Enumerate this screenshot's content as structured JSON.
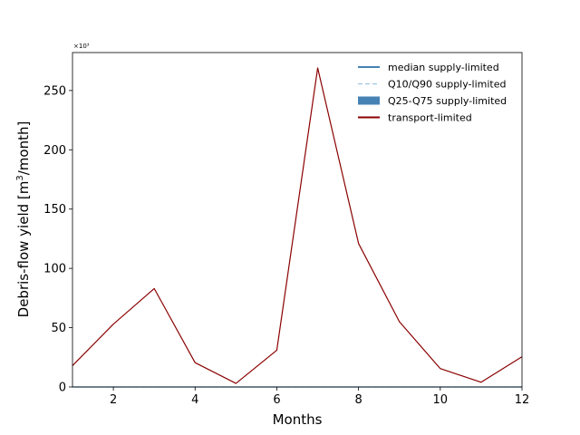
{
  "chart_data": {
    "type": "line",
    "xlabel": "Months",
    "ylabel_main": "Debris-flow yield [m",
    "ylabel_sup": "3",
    "ylabel_tail": "/month]",
    "y_scale_note": "×10³",
    "xlim": [
      1,
      12
    ],
    "ylim": [
      0,
      282
    ],
    "x_ticks": [
      2,
      4,
      6,
      8,
      10,
      12
    ],
    "y_ticks": [
      0,
      50,
      100,
      150,
      200,
      250
    ],
    "grid": false,
    "legend_position": "top-right",
    "colors": {
      "median": "#4682b4",
      "q10_q90": "#9ec5e0",
      "q25_q75": "#4682b4",
      "transport": "#8b0000"
    },
    "series": [
      {
        "name": "median supply-limited",
        "style": "solid",
        "x": [
          1,
          2,
          3,
          4,
          5,
          6,
          7,
          8,
          9,
          10,
          11,
          12
        ],
        "y": [
          0,
          0,
          0,
          0,
          0,
          0,
          0,
          0,
          0,
          0,
          0,
          0
        ]
      },
      {
        "name": "Q10/Q90 supply-limited",
        "style": "dashed",
        "x": [
          1,
          2,
          3,
          4,
          5,
          6,
          7,
          8,
          9,
          10,
          11,
          12
        ],
        "y": [
          0,
          0,
          0,
          0,
          0,
          0,
          0,
          0,
          0,
          0,
          0,
          0
        ]
      },
      {
        "name": "Q25-Q75 supply-limited",
        "style": "band",
        "x": [
          1,
          2,
          3,
          4,
          5,
          6,
          7,
          8,
          9,
          10,
          11,
          12
        ],
        "y": [
          0,
          0,
          0,
          0,
          0,
          0,
          0,
          0,
          0,
          0,
          0,
          0
        ]
      },
      {
        "name": "transport-limited",
        "style": "solid",
        "x": [
          1,
          2,
          3,
          4,
          5,
          6,
          7,
          8,
          9,
          10,
          11,
          12
        ],
        "y": [
          18,
          53,
          83,
          20.5,
          3,
          31,
          269,
          121,
          55,
          15.5,
          4,
          25.5
        ]
      }
    ]
  }
}
